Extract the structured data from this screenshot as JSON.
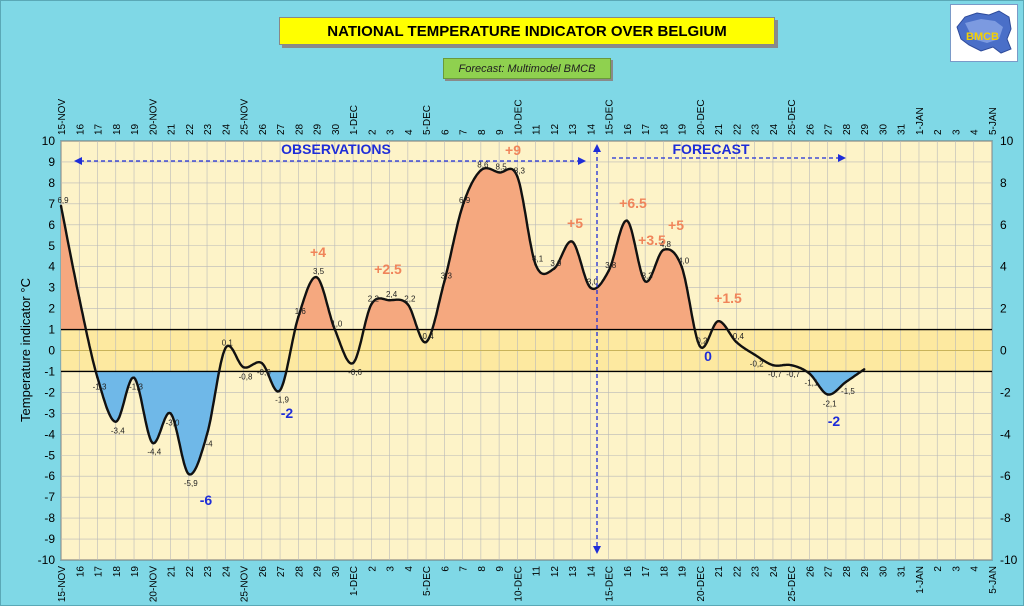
{
  "header": {
    "title": "NATIONAL TEMPERATURE INDICATOR OVER  BELGIUM",
    "subtitle": "Forecast:  Multimodel BMCB",
    "logo_text": "BMCB",
    "logo_icon": "belgium-map-logo-icon"
  },
  "colors": {
    "warm_fill": "#f5a87f",
    "cold_fill": "#6fb8e8",
    "plot_bg": "#fdf3c8",
    "normal_band": "#fde9a0",
    "annotation_blue": "#1e2dd8",
    "annotation_orange": "#f0845a",
    "background": "#7fd8e6"
  },
  "chart_data": {
    "type": "area",
    "ylabel": "Temperature indicator   °C",
    "ylim": [
      -10,
      10
    ],
    "y_ticks": [
      "10",
      "9",
      "8",
      "7",
      "6",
      "5",
      "4",
      "3",
      "2",
      "1",
      "0",
      "-1",
      "-2",
      "-3",
      "-4",
      "-5",
      "-6",
      "-7",
      "-8",
      "-9",
      "-10"
    ],
    "y_ticks_right": [
      "10",
      "8",
      "6",
      "4",
      "2",
      "0",
      "-2",
      "-4",
      "-6",
      "-8",
      "-10"
    ],
    "x_labels": [
      "15-NOV",
      "16",
      "17",
      "18",
      "19",
      "20-NOV",
      "21",
      "22",
      "23",
      "24",
      "25-NOV",
      "26",
      "27",
      "28",
      "29",
      "30",
      "1-DEC",
      "2",
      "3",
      "4",
      "5-DEC",
      "6",
      "7",
      "8",
      "9",
      "10-DEC",
      "11",
      "12",
      "13",
      "14",
      "15-DEC",
      "16",
      "17",
      "18",
      "19",
      "20-DEC",
      "21",
      "22",
      "23",
      "24",
      "25-DEC",
      "26",
      "27",
      "28",
      "29",
      "30",
      "31",
      "1-JAN",
      "2",
      "3",
      "4",
      "5-JAN"
    ],
    "normal_band": [
      -1,
      1
    ],
    "today_index": 29,
    "series": [
      {
        "values": [
          6.9,
          2.5,
          -1.3,
          -3.4,
          -1.3,
          -4.4,
          -3.0,
          -5.9,
          -4.0,
          0.1,
          -0.8,
          -0.6,
          -1.9,
          1.6,
          3.5,
          1.0,
          -0.6,
          2.2,
          2.4,
          2.2,
          0.4,
          3.3,
          6.9,
          8.6,
          8.5,
          8.3,
          4.1,
          3.9,
          5.2,
          3.0,
          3.8,
          6.2,
          3.3,
          4.8,
          4.0,
          0.2,
          1.4,
          0.4,
          -0.2,
          -0.7,
          -0.7,
          -1.1,
          -2.1,
          -1.5,
          -0.9
        ]
      }
    ],
    "data_labels": [
      {
        "i": 0,
        "t": "6,9"
      },
      {
        "i": 2,
        "t": "-1,3"
      },
      {
        "i": 3,
        "t": "-3,4"
      },
      {
        "i": 4,
        "t": "-1,3"
      },
      {
        "i": 5,
        "t": "-4,4"
      },
      {
        "i": 6,
        "t": "-3,0"
      },
      {
        "i": 7,
        "t": "-5,9"
      },
      {
        "i": 8,
        "t": "-4"
      },
      {
        "i": 9,
        "t": "0,1"
      },
      {
        "i": 10,
        "t": "-0,8"
      },
      {
        "i": 11,
        "t": "-0,6"
      },
      {
        "i": 12,
        "t": "-1,9"
      },
      {
        "i": 13,
        "t": "1,6"
      },
      {
        "i": 14,
        "t": "3,5"
      },
      {
        "i": 15,
        "t": "1,0"
      },
      {
        "i": 16,
        "t": "-0,6"
      },
      {
        "i": 17,
        "t": "2,2"
      },
      {
        "i": 18,
        "t": "2,4"
      },
      {
        "i": 19,
        "t": "2,2"
      },
      {
        "i": 20,
        "t": "0,4"
      },
      {
        "i": 21,
        "t": "3,3"
      },
      {
        "i": 22,
        "t": "6,9"
      },
      {
        "i": 23,
        "t": "8,6"
      },
      {
        "i": 24,
        "t": "8,5"
      },
      {
        "i": 25,
        "t": "8,3"
      },
      {
        "i": 26,
        "t": "4,1"
      },
      {
        "i": 27,
        "t": "3,9"
      },
      {
        "i": 29,
        "t": "3,0"
      },
      {
        "i": 30,
        "t": "3,8"
      },
      {
        "i": 32,
        "t": "3,3"
      },
      {
        "i": 33,
        "t": "4,8"
      },
      {
        "i": 34,
        "t": "4,0"
      },
      {
        "i": 35,
        "t": "0,2"
      },
      {
        "i": 37,
        "t": "0,4"
      },
      {
        "i": 38,
        "t": "-0,2"
      },
      {
        "i": 39,
        "t": "-0,7"
      },
      {
        "i": 40,
        "t": "-0,7"
      },
      {
        "i": 41,
        "t": "-1,1"
      },
      {
        "i": 42,
        "t": "-2,1"
      },
      {
        "i": 43,
        "t": "-1,5"
      }
    ],
    "annotations": [
      {
        "text": "OBSERVATIONS",
        "color": "blue"
      },
      {
        "text": "FORECAST",
        "color": "blue"
      },
      {
        "text": "+9",
        "color": "orange"
      },
      {
        "text": "+4",
        "color": "orange"
      },
      {
        "text": "+2.5",
        "color": "orange"
      },
      {
        "text": "+5",
        "color": "orange"
      },
      {
        "text": "+6.5",
        "color": "orange"
      },
      {
        "text": "+3.5",
        "color": "orange"
      },
      {
        "text": "+5",
        "color": "orange"
      },
      {
        "text": "+1.5",
        "color": "orange"
      },
      {
        "text": "0",
        "color": "blue"
      },
      {
        "text": "-2",
        "color": "blue"
      },
      {
        "text": "-6",
        "color": "blue"
      },
      {
        "text": "-2",
        "color": "blue"
      }
    ]
  }
}
